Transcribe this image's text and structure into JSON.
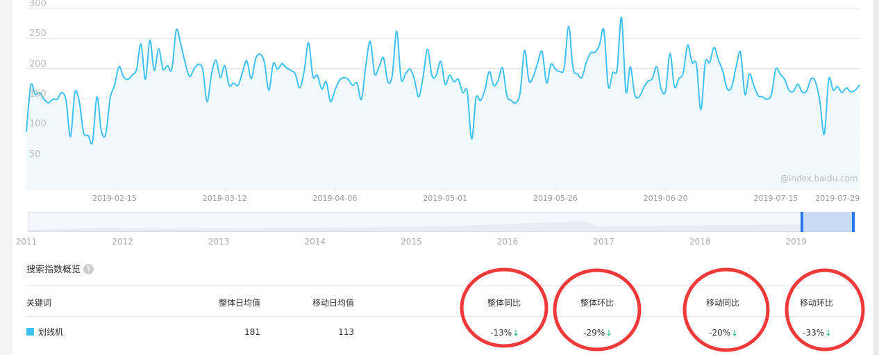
{
  "chart_data": {
    "type": "area",
    "title": "",
    "xlabel": "",
    "ylabel": "",
    "ylim": [
      0,
      300
    ],
    "y_ticks": [
      "50",
      "100",
      "150",
      "200",
      "250",
      "300"
    ],
    "x_range": [
      "2019-01-26",
      "2019-08-03"
    ],
    "x_tick_labels": [
      "2019-02-15",
      "2019-03-12",
      "2019-04-06",
      "2019-05-01",
      "2019-05-26",
      "2019-06-20",
      "2019-07-15",
      "2019-07-29"
    ],
    "grid": true,
    "line_color": "#3ec1f3",
    "fill_color": "#eef8fc",
    "values": [
      95,
      172,
      157,
      160,
      149,
      143,
      149,
      149,
      160,
      147,
      87,
      160,
      145,
      93,
      89,
      78,
      153,
      97,
      91,
      151,
      172,
      203,
      187,
      182,
      189,
      199,
      241,
      182,
      247,
      197,
      233,
      199,
      205,
      199,
      264,
      241,
      210,
      187,
      199,
      207,
      199,
      145,
      191,
      214,
      185,
      205,
      172,
      176,
      172,
      193,
      213,
      183,
      216,
      224,
      210,
      164,
      208,
      199,
      208,
      201,
      197,
      191,
      168,
      195,
      243,
      187,
      189,
      166,
      178,
      145,
      164,
      180,
      185,
      182,
      172,
      176,
      149,
      205,
      245,
      191,
      203,
      218,
      178,
      189,
      262,
      183,
      191,
      199,
      183,
      153,
      187,
      232,
      188,
      189,
      212,
      174,
      189,
      178,
      182,
      160,
      162,
      83,
      151,
      147,
      164,
      195,
      172,
      180,
      201,
      155,
      147,
      143,
      160,
      230,
      180,
      187,
      210,
      228,
      176,
      207,
      199,
      195,
      201,
      270,
      201,
      191,
      185,
      210,
      226,
      227,
      239,
      264,
      170,
      193,
      199,
      285,
      162,
      203,
      157,
      153,
      168,
      179,
      183,
      203,
      166,
      163,
      225,
      170,
      183,
      193,
      239,
      210,
      207,
      132,
      210,
      210,
      235,
      214,
      195,
      166,
      170,
      203,
      227,
      157,
      191,
      172,
      155,
      153,
      149,
      157,
      199,
      191,
      182,
      164,
      162,
      174,
      161,
      163,
      183,
      178,
      145,
      91,
      182,
      164,
      170,
      160,
      168,
      161,
      164,
      173
    ],
    "watermark": "@index.baidu.com"
  },
  "navigator": {
    "years": [
      "2011",
      "2012",
      "2013",
      "2014",
      "2015",
      "2016",
      "2017",
      "2018",
      "2019"
    ],
    "selection_color": "#c7dbf6",
    "handle_color": "#2677f0"
  },
  "overview": {
    "title": "搜索指数概览",
    "help_icon": "?",
    "headers": {
      "keyword": "关键词",
      "overall_avg": "整体日均值",
      "mobile_avg": "移动日均值",
      "overall_yoy": "整体同比",
      "overall_mom": "整体环比",
      "mobile_yoy": "移动同比",
      "mobile_mom": "移动环比"
    },
    "rows": [
      {
        "keyword": "划线机",
        "color": "#3ec1f3",
        "overall_avg": "181",
        "mobile_avg": "113",
        "overall_yoy": "-13%",
        "overall_mom": "-29%",
        "mobile_yoy": "-20%",
        "mobile_mom": "-33%",
        "trend_icon": "arrow-down",
        "trend_glyph": "🡓"
      }
    ],
    "annotation_color": "#f03a3a"
  }
}
